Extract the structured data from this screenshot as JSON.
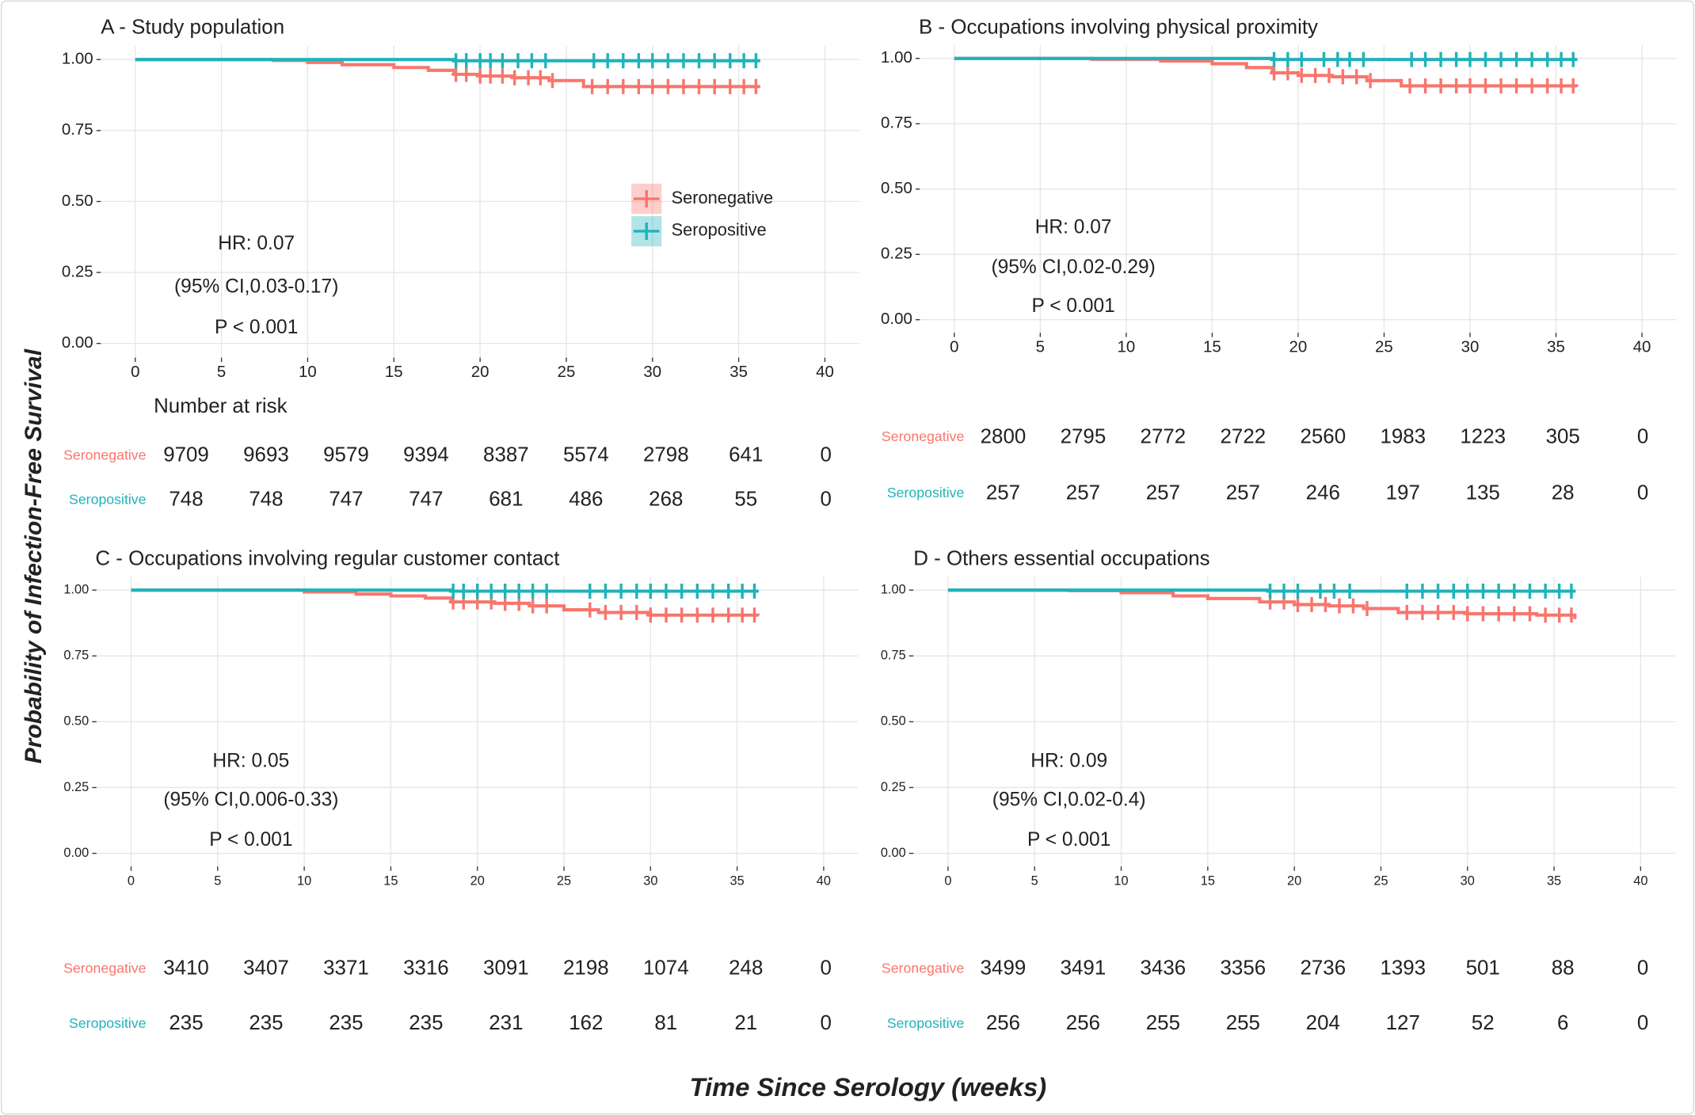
{
  "figure": {
    "y_label": "Probability of Infection-Free Survival",
    "x_label": "Time Since Serology (weeks)"
  },
  "chart_data": [
    {
      "type": "line",
      "step": true,
      "title": "A - Study population",
      "annotations": [
        "HR: 0.07",
        "(95% CI,0.03-0.17)",
        "P < 0.001"
      ],
      "xlim": [
        -2,
        42
      ],
      "ylim": [
        -0.05,
        1.05
      ],
      "xticks": [
        0,
        5,
        10,
        15,
        20,
        25,
        30,
        35,
        40
      ],
      "yticks": [
        {
          "value": 0,
          "label": "0.00"
        },
        {
          "value": 0.25,
          "label": "0.25"
        },
        {
          "value": 0.5,
          "label": "0.50"
        },
        {
          "value": 0.75,
          "label": "0.75"
        },
        {
          "value": 1,
          "label": "1.00"
        }
      ],
      "grid": true,
      "legend": true,
      "risk_table_title": "Number at risk",
      "series": [
        {
          "name": "Seronegative",
          "color": "#F8766D",
          "x": [
            0,
            5,
            8,
            10,
            12,
            15,
            17,
            18.5,
            20,
            22,
            24,
            26,
            36.2
          ],
          "values": [
            1,
            1,
            0.997,
            0.99,
            0.982,
            0.972,
            0.962,
            0.948,
            0.942,
            0.936,
            0.926,
            0.905,
            0.905
          ],
          "censor_x": [
            18.6,
            19.2,
            20,
            20.6,
            21.3,
            22,
            22.8,
            23.5,
            24.2,
            26.5,
            27.4,
            28.3,
            29.2,
            30,
            30.9,
            31.8,
            32.7,
            33.6,
            34.5,
            35.3,
            36
          ],
          "at_risk": [
            9709,
            9693,
            9579,
            9394,
            8387,
            5574,
            2798,
            641,
            0
          ]
        },
        {
          "name": "Seropositive",
          "color": "#1FB3BA",
          "x": [
            0,
            16,
            18.5,
            36.2
          ],
          "values": [
            1,
            1,
            0.996,
            0.996
          ],
          "censor_x": [
            18.6,
            19.2,
            20,
            20.6,
            21.3,
            22.2,
            23,
            23.8,
            26.6,
            27.4,
            28.3,
            29.2,
            30,
            30.9,
            31.8,
            32.7,
            33.6,
            34.5,
            35.3,
            36
          ],
          "at_risk": [
            748,
            748,
            747,
            747,
            681,
            486,
            268,
            55,
            0
          ]
        }
      ]
    },
    {
      "type": "line",
      "step": true,
      "title": "B - Occupations involving physical proximity",
      "annotations": [
        "HR: 0.07",
        "(95% CI,0.02-0.29)",
        "P < 0.001"
      ],
      "xlim": [
        -2,
        42
      ],
      "ylim": [
        -0.05,
        1.05
      ],
      "xticks": [
        0,
        5,
        10,
        15,
        20,
        25,
        30,
        35,
        40
      ],
      "yticks": [
        {
          "value": 0,
          "label": "0.00"
        },
        {
          "value": 0.25,
          "label": "0.25"
        },
        {
          "value": 0.5,
          "label": "0.50"
        },
        {
          "value": 0.75,
          "label": "0.75"
        },
        {
          "value": 1,
          "label": "1.00"
        }
      ],
      "grid": true,
      "legend": false,
      "series": [
        {
          "name": "Seronegative",
          "color": "#F8766D",
          "x": [
            0,
            8,
            12,
            15,
            17,
            18.5,
            20,
            22,
            24,
            26,
            36.2
          ],
          "values": [
            1,
            0.997,
            0.99,
            0.98,
            0.965,
            0.945,
            0.935,
            0.93,
            0.915,
            0.895,
            0.893
          ],
          "censor_x": [
            18.6,
            19.4,
            20.2,
            21,
            21.8,
            22.6,
            23.4,
            24.2,
            26.5,
            27.4,
            28.3,
            29.2,
            30,
            30.9,
            31.8,
            32.7,
            33.6,
            34.5,
            35.3,
            36
          ],
          "at_risk": [
            2800,
            2795,
            2772,
            2722,
            2560,
            1983,
            1223,
            305,
            0
          ]
        },
        {
          "name": "Seropositive",
          "color": "#1FB3BA",
          "x": [
            0,
            16,
            18.5,
            36.2
          ],
          "values": [
            1,
            1,
            0.996,
            0.996
          ],
          "censor_x": [
            18.6,
            19.4,
            20.2,
            21.5,
            22.3,
            23,
            23.8,
            26.6,
            27.4,
            28.3,
            29.2,
            30,
            30.9,
            31.8,
            32.7,
            33.6,
            34.5,
            35.3,
            36
          ],
          "at_risk": [
            257,
            257,
            257,
            257,
            246,
            197,
            135,
            28,
            0
          ]
        }
      ]
    },
    {
      "type": "line",
      "step": true,
      "title": "C - Occupations involving regular customer contact",
      "annotations": [
        "HR: 0.05",
        "(95% CI,0.006-0.33)",
        "P < 0.001"
      ],
      "xlim": [
        -2,
        42
      ],
      "ylim": [
        -0.05,
        1.05
      ],
      "xticks": [
        0,
        5,
        10,
        15,
        20,
        25,
        30,
        35,
        40
      ],
      "yticks": [
        {
          "value": 0,
          "label": "0.00"
        },
        {
          "value": 0.25,
          "label": "0.25"
        },
        {
          "value": 0.5,
          "label": "0.50"
        },
        {
          "value": 0.75,
          "label": "0.75"
        },
        {
          "value": 1,
          "label": "1.00"
        }
      ],
      "grid": true,
      "legend": false,
      "series": [
        {
          "name": "Seronegative",
          "color": "#F8766D",
          "x": [
            0,
            7,
            10,
            13,
            15,
            17,
            18.5,
            21,
            23,
            25,
            27,
            30,
            36.2
          ],
          "values": [
            1,
            1,
            0.993,
            0.985,
            0.978,
            0.97,
            0.955,
            0.95,
            0.94,
            0.925,
            0.915,
            0.905,
            0.903
          ],
          "censor_x": [
            18.6,
            19.2,
            20,
            20.8,
            21.6,
            22.4,
            23.2,
            24,
            26.5,
            27.4,
            28.3,
            29.2,
            30,
            30.9,
            31.8,
            32.7,
            33.6,
            34.5,
            35.3,
            36
          ],
          "at_risk": [
            3410,
            3407,
            3371,
            3316,
            3091,
            2198,
            1074,
            248,
            0
          ]
        },
        {
          "name": "Seropositive",
          "color": "#1FB3BA",
          "x": [
            0,
            16,
            18.5,
            36.2
          ],
          "values": [
            1,
            1,
            0.996,
            0.996
          ],
          "censor_x": [
            18.6,
            19.2,
            20,
            20.8,
            21.6,
            22.4,
            23.2,
            24,
            26.5,
            27.4,
            28.3,
            29.2,
            30,
            30.9,
            31.8,
            32.7,
            33.6,
            34.5,
            35.3,
            36
          ],
          "at_risk": [
            235,
            235,
            235,
            235,
            231,
            162,
            81,
            21,
            0
          ]
        }
      ]
    },
    {
      "type": "line",
      "step": true,
      "title": "D - Others essential occupations",
      "annotations": [
        "HR: 0.09",
        "(95% CI,0.02-0.4)",
        "P < 0.001"
      ],
      "xlim": [
        -2,
        42
      ],
      "ylim": [
        -0.05,
        1.05
      ],
      "xticks": [
        0,
        5,
        10,
        15,
        20,
        25,
        30,
        35,
        40
      ],
      "yticks": [
        {
          "value": 0,
          "label": "0.00"
        },
        {
          "value": 0.25,
          "label": "0.25"
        },
        {
          "value": 0.5,
          "label": "0.50"
        },
        {
          "value": 0.75,
          "label": "0.75"
        },
        {
          "value": 1,
          "label": "1.00"
        }
      ],
      "grid": true,
      "legend": false,
      "series": [
        {
          "name": "Seronegative",
          "color": "#F8766D",
          "x": [
            0,
            7,
            10,
            13,
            15,
            18,
            20,
            22,
            24,
            26,
            30,
            34,
            36.2
          ],
          "values": [
            1,
            0.998,
            0.99,
            0.978,
            0.968,
            0.955,
            0.945,
            0.94,
            0.93,
            0.915,
            0.91,
            0.905,
            0.89
          ],
          "censor_x": [
            18.6,
            19.4,
            20.2,
            21,
            21.8,
            22.6,
            23.4,
            24.2,
            26.5,
            27.4,
            28.3,
            29.2,
            30,
            30.9,
            31.8,
            32.7,
            33.6,
            34.5,
            35.3,
            36
          ],
          "at_risk": [
            3499,
            3491,
            3436,
            3356,
            2736,
            1393,
            501,
            88,
            0
          ]
        },
        {
          "name": "Seropositive",
          "color": "#1FB3BA",
          "x": [
            0,
            16,
            18.5,
            36.2
          ],
          "values": [
            1,
            1,
            0.996,
            0.996
          ],
          "censor_x": [
            18.6,
            19.4,
            20.2,
            21.5,
            22.3,
            23.2,
            26.5,
            27.4,
            28.3,
            29.2,
            30,
            30.9,
            31.8,
            32.7,
            33.6,
            34.5,
            35.3,
            36
          ],
          "at_risk": [
            256,
            256,
            255,
            255,
            204,
            127,
            52,
            6,
            0
          ]
        }
      ]
    }
  ]
}
